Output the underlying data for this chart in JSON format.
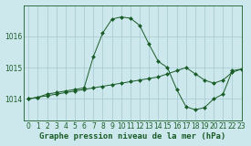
{
  "title": "Graphe pression niveau de la mer (hPa)",
  "background_color": "#cce8ec",
  "grid_color": "#aacdd4",
  "line_color": "#1a5c28",
  "xlim": [
    -0.5,
    23
  ],
  "ylim": [
    1013.3,
    1017.0
  ],
  "yticks": [
    1014,
    1015,
    1016
  ],
  "xticks": [
    0,
    1,
    2,
    3,
    4,
    5,
    6,
    7,
    8,
    9,
    10,
    11,
    12,
    13,
    14,
    15,
    16,
    17,
    18,
    19,
    20,
    21,
    22,
    23
  ],
  "series1_x": [
    0,
    1,
    2,
    3,
    4,
    5,
    6,
    7,
    8,
    9,
    10,
    11,
    12,
    13,
    14,
    15,
    16,
    17,
    18,
    19,
    20,
    21,
    22,
    23
  ],
  "series1_y": [
    1014.0,
    1014.05,
    1014.1,
    1014.15,
    1014.2,
    1014.25,
    1014.3,
    1014.35,
    1014.4,
    1014.45,
    1014.5,
    1014.55,
    1014.6,
    1014.65,
    1014.7,
    1014.8,
    1014.9,
    1015.0,
    1014.8,
    1014.6,
    1014.5,
    1014.6,
    1014.85,
    1014.95
  ],
  "series2_x": [
    0,
    1,
    2,
    3,
    4,
    5,
    6,
    7,
    8,
    9,
    10,
    11,
    12,
    13,
    14,
    15,
    16,
    17,
    18,
    19,
    20,
    21,
    22,
    23
  ],
  "series2_y": [
    1014.0,
    1014.05,
    1014.15,
    1014.2,
    1014.25,
    1014.3,
    1014.35,
    1015.35,
    1016.1,
    1016.55,
    1016.62,
    1016.58,
    1016.35,
    1015.75,
    1015.2,
    1015.0,
    1014.3,
    1013.75,
    1013.65,
    1013.72,
    1014.0,
    1014.15,
    1014.9,
    1014.95
  ],
  "xlabel_color": "#1a5c28",
  "tick_fontsize": 5.5,
  "label_fontsize": 6.5,
  "marker": "D",
  "marker_size": 2.0
}
